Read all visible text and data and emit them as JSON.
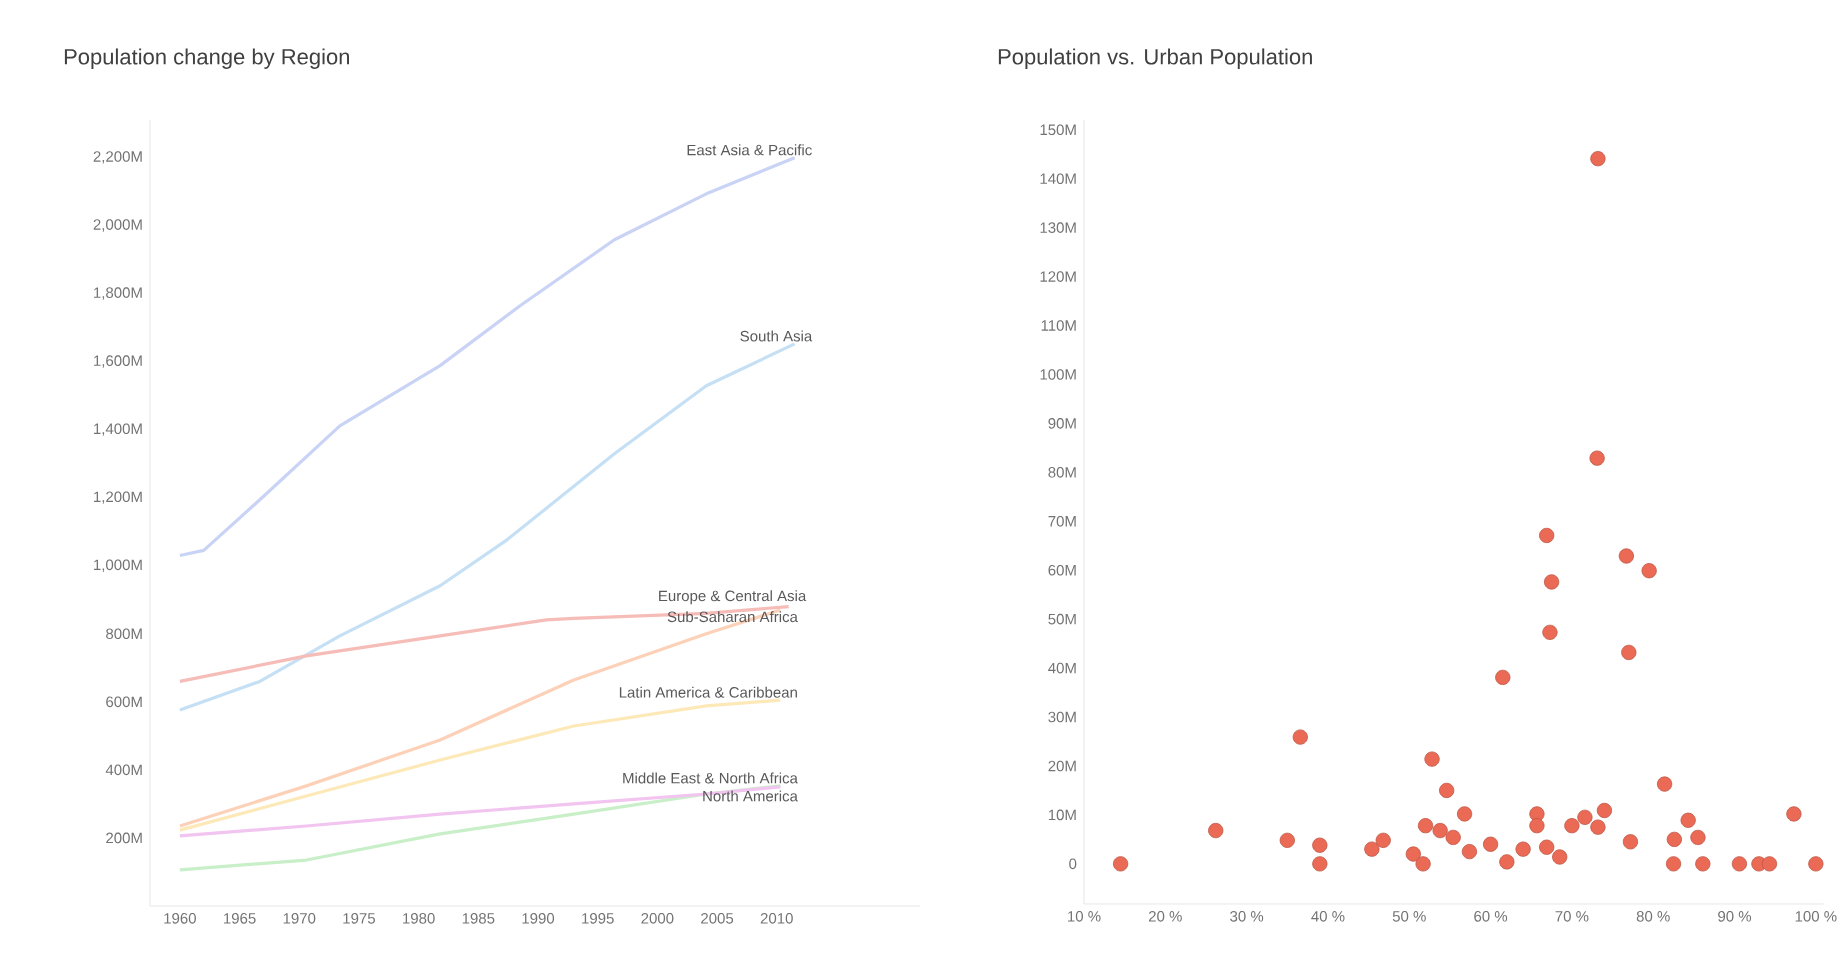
{
  "chart_data": [
    {
      "type": "line",
      "title": "Population change by Region",
      "xlim": [
        1957.5,
        2022
      ],
      "ylim": [
        0,
        2310
      ],
      "xticks": [
        1960,
        1965,
        1970,
        1975,
        1980,
        1985,
        1990,
        1995,
        2000,
        2005,
        2010
      ],
      "yticks": [
        {
          "value": 200,
          "label": "200M"
        },
        {
          "value": 400,
          "label": "400M"
        },
        {
          "value": 600,
          "label": "600M"
        },
        {
          "value": 800,
          "label": "800M"
        },
        {
          "value": 1000,
          "label": "1,000M"
        },
        {
          "value": 1200,
          "label": "1,200M"
        },
        {
          "value": 1400,
          "label": "1,400M"
        },
        {
          "value": 1600,
          "label": "1,600M"
        },
        {
          "value": 1800,
          "label": "1,800M"
        },
        {
          "value": 2000,
          "label": "2,000M"
        },
        {
          "value": 2200,
          "label": "2,200M"
        }
      ],
      "grid": false,
      "legend": false,
      "marker": "none",
      "line_style": "solid",
      "series": [
        {
          "name": "East Asia & Pacific",
          "color": "#c9d3f5",
          "x": [
            1960,
            1962,
            1966.7,
            1973.4,
            1981.8,
            1988.5,
            1996.4,
            2004.1,
            2011.5
          ],
          "values": [
            1030,
            1045,
            1194,
            1411,
            1588,
            1764,
            1958,
            2093,
            2199
          ]
        },
        {
          "name": "South Asia",
          "color": "#c5e0f5",
          "x": [
            1960,
            1966.7,
            1973.4,
            1981.8,
            1987.4,
            1996.4,
            2004.1,
            2011.5
          ],
          "values": [
            576,
            660,
            794,
            941,
            1076,
            1329,
            1529,
            1652
          ]
        },
        {
          "name": "Sub-Saharan Africa",
          "color": "#fcd1b8",
          "x": [
            1960,
            1970.6,
            1981.8,
            1993,
            2004.1,
            2010.3
          ],
          "values": [
            235,
            353,
            488,
            664,
            800,
            870
          ]
        },
        {
          "name": "Europe & Central Asia",
          "color": "#f6bcb8",
          "x": [
            1960,
            1970.6,
            1981.8,
            1990.7,
            1993,
            2004.1,
            2011
          ],
          "values": [
            660,
            735,
            794,
            841,
            845,
            860,
            880
          ]
        },
        {
          "name": "Latin America & Caribbean",
          "color": "#fde9b8",
          "x": [
            1960,
            1970.6,
            1981.8,
            1993,
            2004.1,
            2010.3
          ],
          "values": [
            223,
            323,
            429,
            529,
            588,
            605
          ]
        },
        {
          "name": "Middle East & North Africa",
          "color": "#c8efc8",
          "x": [
            1960,
            1970.6,
            1981.8,
            1993,
            2004.1,
            2010.3
          ],
          "values": [
            106,
            135,
            212,
            270,
            329,
            353
          ]
        },
        {
          "name": "North America",
          "color": "#f2c4f0",
          "x": [
            1960,
            1970.6,
            1981.8,
            1993,
            2004.1,
            2010.3
          ],
          "values": [
            206,
            235,
            270,
            300,
            329,
            350
          ]
        }
      ]
    },
    {
      "type": "scatter",
      "title": "Population vs. Urban Population",
      "xlim": [
        10,
        101
      ],
      "ylim": [
        -8.2,
        152
      ],
      "xticks": [
        {
          "value": 10,
          "label": "10 %"
        },
        {
          "value": 20,
          "label": "20 %"
        },
        {
          "value": 30,
          "label": "30 %"
        },
        {
          "value": 40,
          "label": "40 %"
        },
        {
          "value": 50,
          "label": "50 %"
        },
        {
          "value": 60,
          "label": "60 %"
        },
        {
          "value": 70,
          "label": "70 %"
        },
        {
          "value": 80,
          "label": "80 %"
        },
        {
          "value": 90,
          "label": "90 %"
        },
        {
          "value": 100,
          "label": "100 %"
        }
      ],
      "yticks": [
        0,
        {
          "value": 10,
          "label": "10M"
        },
        {
          "value": 20,
          "label": "20M"
        },
        {
          "value": 30,
          "label": "30M"
        },
        {
          "value": 40,
          "label": "40M"
        },
        {
          "value": 50,
          "label": "50M"
        },
        {
          "value": 60,
          "label": "60M"
        },
        {
          "value": 70,
          "label": "70M"
        },
        {
          "value": 80,
          "label": "80M"
        },
        {
          "value": 90,
          "label": "90M"
        },
        {
          "value": 100,
          "label": "100M"
        },
        {
          "value": 110,
          "label": "110M"
        },
        {
          "value": 120,
          "label": "120M"
        },
        {
          "value": 130,
          "label": "130M"
        },
        {
          "value": 140,
          "label": "140M"
        },
        {
          "value": 150,
          "label": "150M"
        }
      ],
      "grid": false,
      "legend": false,
      "marker": "circle",
      "color": "#eb6a55",
      "x": [
        73.2,
        73.1,
        66.9,
        14.5,
        26.2,
        35,
        36.6,
        39,
        39,
        45.4,
        46.8,
        50.5,
        52,
        52.8,
        51.7,
        53.8,
        54.6,
        55.4,
        56.8,
        57.4,
        60,
        61.5,
        62,
        64,
        65.7,
        65.7,
        67.5,
        67.3,
        66.9,
        68.5,
        70,
        71.6,
        73.2,
        74,
        76.7,
        79.5,
        77,
        77.2,
        81.4,
        82.6,
        82.5,
        84.3,
        85.5,
        86.1,
        90.6,
        93,
        94.3,
        97.3,
        100
      ],
      "values": [
        144.1,
        82.9,
        67.1,
        0,
        6.8,
        4.8,
        25.9,
        3.8,
        0,
        3,
        4.8,
        2,
        7.8,
        21.4,
        0,
        6.8,
        15,
        5.4,
        10.2,
        2.5,
        4,
        38.1,
        0.4,
        3,
        10.2,
        7.8,
        57.6,
        47.3,
        3.4,
        1.4,
        7.8,
        9.5,
        7.5,
        10.9,
        62.9,
        59.9,
        43.2,
        4.5,
        16.3,
        5,
        0,
        8.9,
        5.4,
        0,
        0,
        0,
        0,
        10.2,
        0
      ]
    }
  ]
}
